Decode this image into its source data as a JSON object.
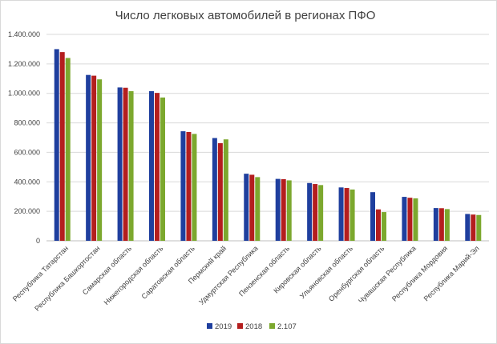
{
  "chart_data": {
    "type": "bar",
    "title": "Число легковых автомобилей в регионах ПФО",
    "xlabel": "",
    "ylabel": "",
    "ylim": [
      0,
      1400000
    ],
    "yticks": [
      "0",
      "200.000",
      "400.000",
      "600.000",
      "800.000",
      "1.000.000",
      "1.200.000",
      "1.400.000"
    ],
    "grid": true,
    "legend_position": "bottom",
    "categories": [
      "Республика Татарстан",
      "Республика Башкортостан",
      "Самарская область",
      "Нижегородская область",
      "Саратовская область",
      "Пермский край",
      "Удмуртская Республика",
      "Пензенская область",
      "Кировская область",
      "Ульяновская область",
      "Оренбургская область",
      "Чувашская Республика",
      "Республика Мордовия",
      "Республика Марий-Эл"
    ],
    "series": [
      {
        "name": "2019",
        "color": "#1f3f9e",
        "values": [
          1300000,
          1125000,
          1040000,
          1015000,
          743000,
          697000,
          455000,
          420000,
          392000,
          362000,
          330000,
          298000,
          222000,
          182000
        ]
      },
      {
        "name": "2018",
        "color": "#b41e1e",
        "values": [
          1280000,
          1120000,
          1038000,
          1003000,
          738000,
          662000,
          448000,
          418000,
          385000,
          358000,
          213000,
          292000,
          221000,
          178000
        ]
      },
      {
        "name": "2.107",
        "color": "#7ca82e",
        "values": [
          1240000,
          1095000,
          1015000,
          972000,
          725000,
          688000,
          432000,
          410000,
          378000,
          348000,
          195000,
          288000,
          215000,
          175000
        ]
      }
    ]
  }
}
